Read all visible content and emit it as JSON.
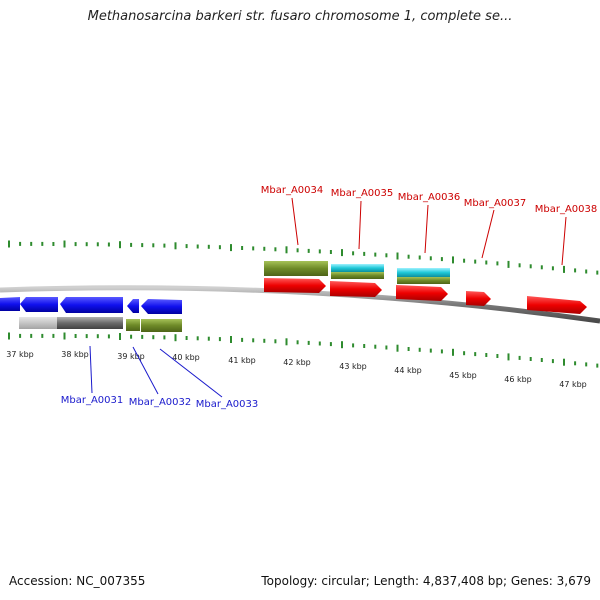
{
  "title": "Methanosarcina barkeri str. fusaro chromosome 1, complete se...",
  "footer": {
    "accession": "Accession: NC_007355",
    "summary": "Topology: circular; Length: 4,837,408 bp; Genes: 3,679"
  },
  "colors": {
    "forward_label": "#cc0000",
    "reverse_label": "#1a1acc",
    "tick": "#2e8b2e",
    "backbone": "#808080"
  },
  "kbp_ticks": [
    "37 kbp",
    "38 kbp",
    "39 kbp",
    "40 kbp",
    "41 kbp",
    "42 kbp",
    "43 kbp",
    "44 kbp",
    "45 kbp",
    "46 kbp",
    "47 kbp"
  ],
  "forward_gene_labels": [
    "Mbar_A0034",
    "Mbar_A0035",
    "Mbar_A0036",
    "Mbar_A0037",
    "Mbar_A0038"
  ],
  "reverse_gene_labels": [
    "Mbar_A0031",
    "Mbar_A0032",
    "Mbar_A0033"
  ]
}
